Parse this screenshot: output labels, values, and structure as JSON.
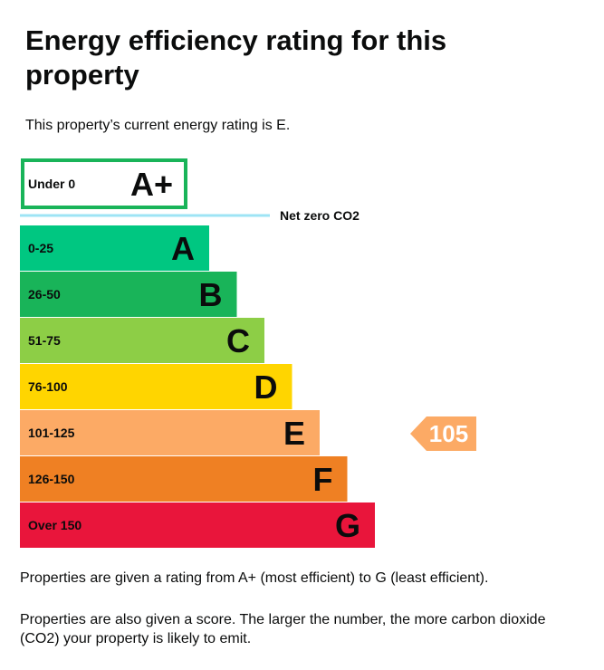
{
  "heading": "Energy efficiency rating for this property",
  "current_rating_text": "This property’s current energy rating is E.",
  "notes": {
    "rating_range": "Properties are given a rating from A+ (most efficient) to G (least efficient).",
    "score_meaning": "Properties are also given a score. The larger the number, the more carbon dioxide (CO2) your property is likely to emit."
  },
  "chart_data": {
    "type": "bar",
    "top_band": {
      "range": "Under 0",
      "letter": "A+",
      "color": "#19b459"
    },
    "net_zero_label": "Net zero CO2",
    "net_zero_line_color": "#9ee4f5",
    "bands": [
      {
        "range": "0-25",
        "letter": "A",
        "color": "#00c781"
      },
      {
        "range": "26-50",
        "letter": "B",
        "color": "#19b459"
      },
      {
        "range": "51-75",
        "letter": "C",
        "color": "#8dce46"
      },
      {
        "range": "76-100",
        "letter": "D",
        "color": "#ffd500"
      },
      {
        "range": "101-125",
        "letter": "E",
        "color": "#fcaa65"
      },
      {
        "range": "126-150",
        "letter": "F",
        "color": "#ef8023"
      },
      {
        "range": "Over 150",
        "letter": "G",
        "color": "#e9153b"
      }
    ],
    "current": {
      "score": 105,
      "score_label": "105",
      "band": "E",
      "color": "#fcaa65"
    }
  }
}
